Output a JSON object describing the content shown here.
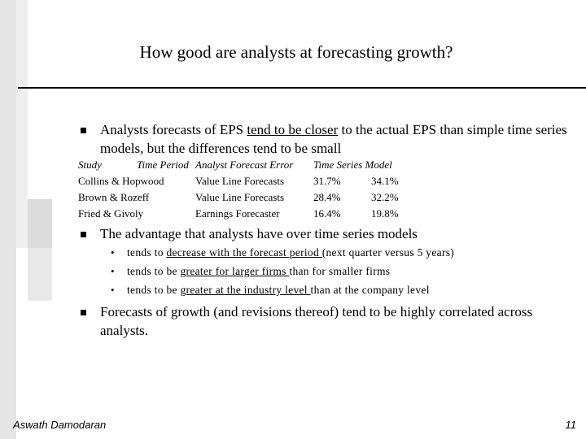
{
  "title": "How good are analysts at forecasting growth?",
  "bullets": [
    {
      "segments": [
        {
          "text": "Analysts forecasts of EPS ",
          "underline": false
        },
        {
          "text": "tend to be closer",
          "underline": true
        },
        {
          "text": " to the actual EPS than simple time series models, but the differences tend to be small",
          "underline": false
        }
      ]
    },
    {
      "segments": [
        {
          "text": "The advantage that analysts have over time series models",
          "underline": false
        }
      ],
      "sub_bullets": [
        {
          "segments": [
            {
              "text": "tends to ",
              "underline": false
            },
            {
              "text": "decrease with the forecast period ",
              "underline": true
            },
            {
              "text": "(next quarter versus 5 years)",
              "underline": false
            }
          ]
        },
        {
          "segments": [
            {
              "text": "tends to be ",
              "underline": false
            },
            {
              "text": "greater for larger firms ",
              "underline": true
            },
            {
              "text": "than for smaller firms",
              "underline": false
            }
          ]
        },
        {
          "segments": [
            {
              "text": "tends to be ",
              "underline": false
            },
            {
              "text": "greater at the industry level ",
              "underline": true
            },
            {
              "text": "than at the company level",
              "underline": false
            }
          ]
        }
      ]
    },
    {
      "segments": [
        {
          "text": "Forecasts of growth (and revisions thereof) tend to be highly correlated across analysts.",
          "underline": false
        }
      ]
    }
  ],
  "table": {
    "header": [
      "Study",
      "Time Period",
      "Analyst Forecast Error",
      "Time Series Model"
    ],
    "rows": [
      [
        "Collins & Hopwood",
        "Value Line Forecasts",
        "31.7%",
        "34.1%"
      ],
      [
        "Brown & Rozeff",
        "Value Line Forecasts",
        "28.4%",
        "32.2%"
      ],
      [
        "Fried & Givoly",
        "Earnings Forecaster",
        "16.4%",
        "19.8%"
      ]
    ]
  },
  "footer": {
    "author": "Aswath Damodaran",
    "page": "11"
  }
}
